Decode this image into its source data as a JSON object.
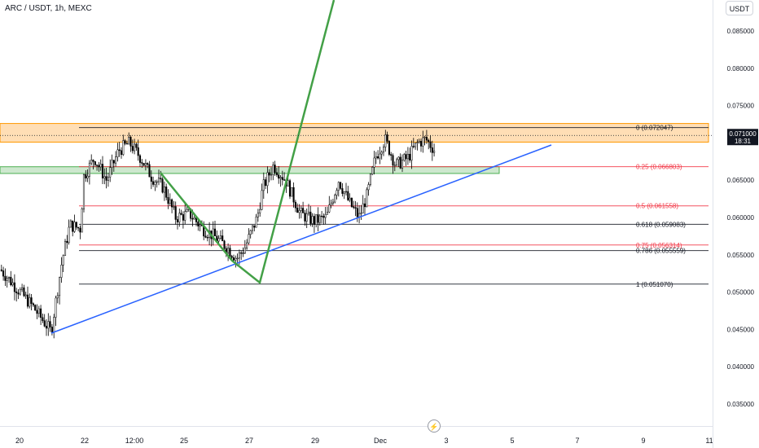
{
  "header": {
    "symbol_title": "ARC / USDT, 1h, MEXC",
    "currency_button": "USDT"
  },
  "price_axis": {
    "labels": [
      "0.085000",
      "0.080000",
      "0.075000",
      "0.065000",
      "0.060000",
      "0.055000",
      "0.050000",
      "0.045000",
      "0.040000",
      "0.035000"
    ],
    "current_price": "0.071000",
    "countdown": "18:31"
  },
  "time_axis": {
    "labels": [
      "20",
      "22",
      "12:00",
      "25",
      "27",
      "29",
      "Dec",
      "3",
      "5",
      "7",
      "9",
      "11"
    ]
  },
  "fibonacci": {
    "levels": [
      {
        "ratio": "0",
        "price": "0.072047",
        "label": "0 (0.072047)"
      },
      {
        "ratio": "0.25",
        "price": "0.066803",
        "label": "0.25 (0.066803)"
      },
      {
        "ratio": "0.5",
        "price": "0.061558",
        "label": "0.5 (0.061558)"
      },
      {
        "ratio": "0.618",
        "price": "0.059083",
        "label": "0.618 (0.059083)"
      },
      {
        "ratio": "0.75",
        "price": "0.056314",
        "label": "0.75 (0.056314)"
      },
      {
        "ratio": "0.786",
        "price": "0.055559",
        "label": "0.786 (0.055559)"
      },
      {
        "ratio": "1",
        "price": "0.051070",
        "label": "1 (0.051070)"
      }
    ]
  },
  "zones": {
    "resistance": {
      "low": 0.0701,
      "high": 0.0726
    },
    "support": {
      "low": 0.0659,
      "high": 0.0668
    }
  },
  "colors": {
    "candle_up": "#ffffff",
    "candle_down": "#000000",
    "candle_border": "#000000",
    "resistance_zone": "#ffd8a8",
    "resistance_border": "#ff9800",
    "support_zone": "#c8e6c9",
    "support_border": "#4caf50",
    "trendline": "#2962ff",
    "projection": "#43a047",
    "fib_black": "#131722",
    "fib_red": "#f23645",
    "current_price_tag": "#131722"
  },
  "icons": {
    "lightning": "lightning-icon"
  }
}
